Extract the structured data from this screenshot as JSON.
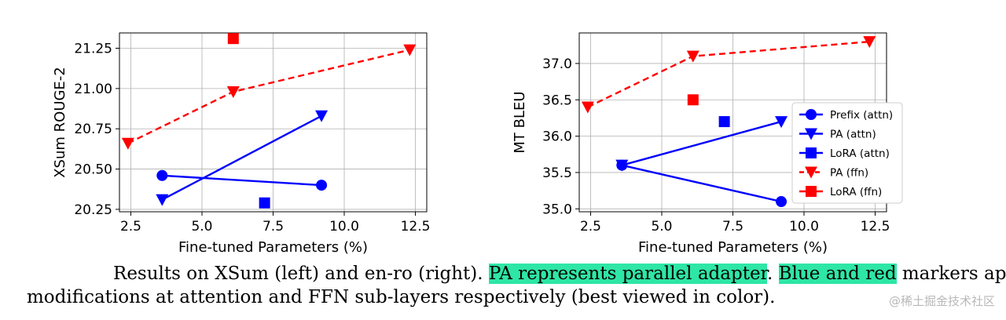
{
  "chart_data": [
    {
      "type": "line",
      "xlabel": "Fine-tuned Parameters (%)",
      "ylabel": "XSum ROUGE-2",
      "xlim": [
        2.1,
        12.9
      ],
      "ylim": [
        20.235,
        21.345
      ],
      "xticks": [
        2.5,
        5.0,
        7.5,
        10.0,
        12.5
      ],
      "xtick_labels": [
        "2.5",
        "5.0",
        "7.5",
        "10.0",
        "12.5"
      ],
      "yticks": [
        20.25,
        20.5,
        20.75,
        21.0,
        21.25
      ],
      "ytick_labels": [
        "20.25",
        "20.50",
        "20.75",
        "21.00",
        "21.25"
      ],
      "grid": true,
      "series": [
        {
          "name": "Prefix (attn)",
          "color": "#0000ff",
          "marker": "circle",
          "line": "solid",
          "x": [
            3.6,
            9.2
          ],
          "y": [
            20.46,
            20.4
          ]
        },
        {
          "name": "PA (attn)",
          "color": "#0000ff",
          "marker": "triangle-down",
          "line": "solid",
          "x": [
            3.6,
            9.2
          ],
          "y": [
            20.31,
            20.83
          ]
        },
        {
          "name": "LoRA (attn)",
          "color": "#0000ff",
          "marker": "square",
          "line": "none",
          "x": [
            7.2
          ],
          "y": [
            20.29
          ]
        },
        {
          "name": "PA (ffn)",
          "color": "#ff0000",
          "marker": "triangle-down",
          "line": "dashed",
          "x": [
            2.4,
            6.1,
            12.3
          ],
          "y": [
            20.66,
            20.98,
            21.24
          ]
        },
        {
          "name": "LoRA (ffn)",
          "color": "#ff0000",
          "marker": "square",
          "line": "none",
          "x": [
            6.1
          ],
          "y": [
            21.31
          ]
        }
      ]
    },
    {
      "type": "line",
      "xlabel": "Fine-tuned Parameters (%)",
      "ylabel": "MT BLEU",
      "xlim": [
        2.1,
        12.9
      ],
      "ylim": [
        34.96,
        37.42
      ],
      "xticks": [
        2.5,
        5.0,
        7.5,
        10.0,
        12.5
      ],
      "xtick_labels": [
        "2.5",
        "5.0",
        "7.5",
        "10.0",
        "12.5"
      ],
      "yticks": [
        35.0,
        35.5,
        36.0,
        36.5,
        37.0
      ],
      "ytick_labels": [
        "35.0",
        "35.5",
        "36.0",
        "36.5",
        "37.0"
      ],
      "grid": true,
      "legend_position": "center-right",
      "series": [
        {
          "name": "Prefix (attn)",
          "color": "#0000ff",
          "marker": "circle",
          "line": "solid",
          "x": [
            3.6,
            9.2
          ],
          "y": [
            35.6,
            35.1
          ]
        },
        {
          "name": "PA (attn)",
          "color": "#0000ff",
          "marker": "triangle-down",
          "line": "solid",
          "x": [
            3.6,
            9.2
          ],
          "y": [
            35.6,
            36.2
          ]
        },
        {
          "name": "LoRA (attn)",
          "color": "#0000ff",
          "marker": "square",
          "line": "none",
          "x": [
            7.2
          ],
          "y": [
            36.2
          ]
        },
        {
          "name": "PA (ffn)",
          "color": "#ff0000",
          "marker": "triangle-down",
          "line": "dashed",
          "x": [
            2.4,
            6.1,
            12.3
          ],
          "y": [
            36.4,
            37.1,
            37.3
          ]
        },
        {
          "name": "LoRA (ffn)",
          "color": "#ff0000",
          "marker": "square",
          "line": "none",
          "x": [
            6.1
          ],
          "y": [
            36.5
          ]
        }
      ]
    }
  ],
  "caption": {
    "part1": "Results on XSum (left) and en-ro (right). ",
    "highlight1": "PA represents parallel adapter",
    "part2": ". ",
    "highlight2": "Blue and red",
    "part3": " markers apply",
    "line2": "modifications at attention and FFN sub-layers respectively (best viewed in color)."
  },
  "watermark": "@稀土掘金技术社区",
  "colors": {
    "blue": "#0000ff",
    "red": "#ff0000",
    "highlight": "#2ee6a6"
  }
}
